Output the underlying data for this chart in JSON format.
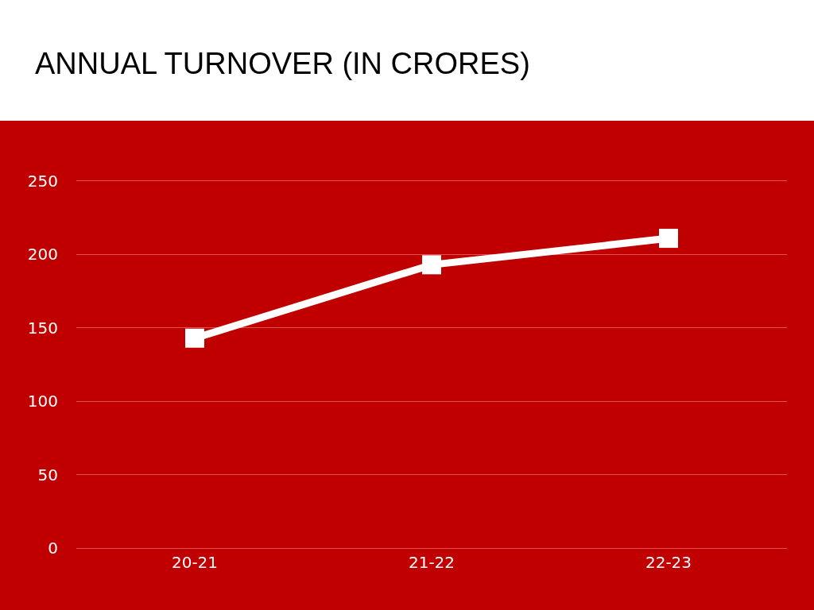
{
  "chart_data": {
    "type": "line",
    "title": "ANNUAL TURNOVER (IN CRORES)",
    "categories": [
      "20-21",
      "21-22",
      "22-23"
    ],
    "series": [
      {
        "color": "#ffffff",
        "values": [
          143,
          193,
          211
        ]
      }
    ],
    "ylim": [
      0,
      250
    ],
    "yticks": [
      0,
      50,
      100,
      150,
      200,
      250
    ],
    "grid": "y",
    "marker": "square",
    "line_style": "solid"
  }
}
